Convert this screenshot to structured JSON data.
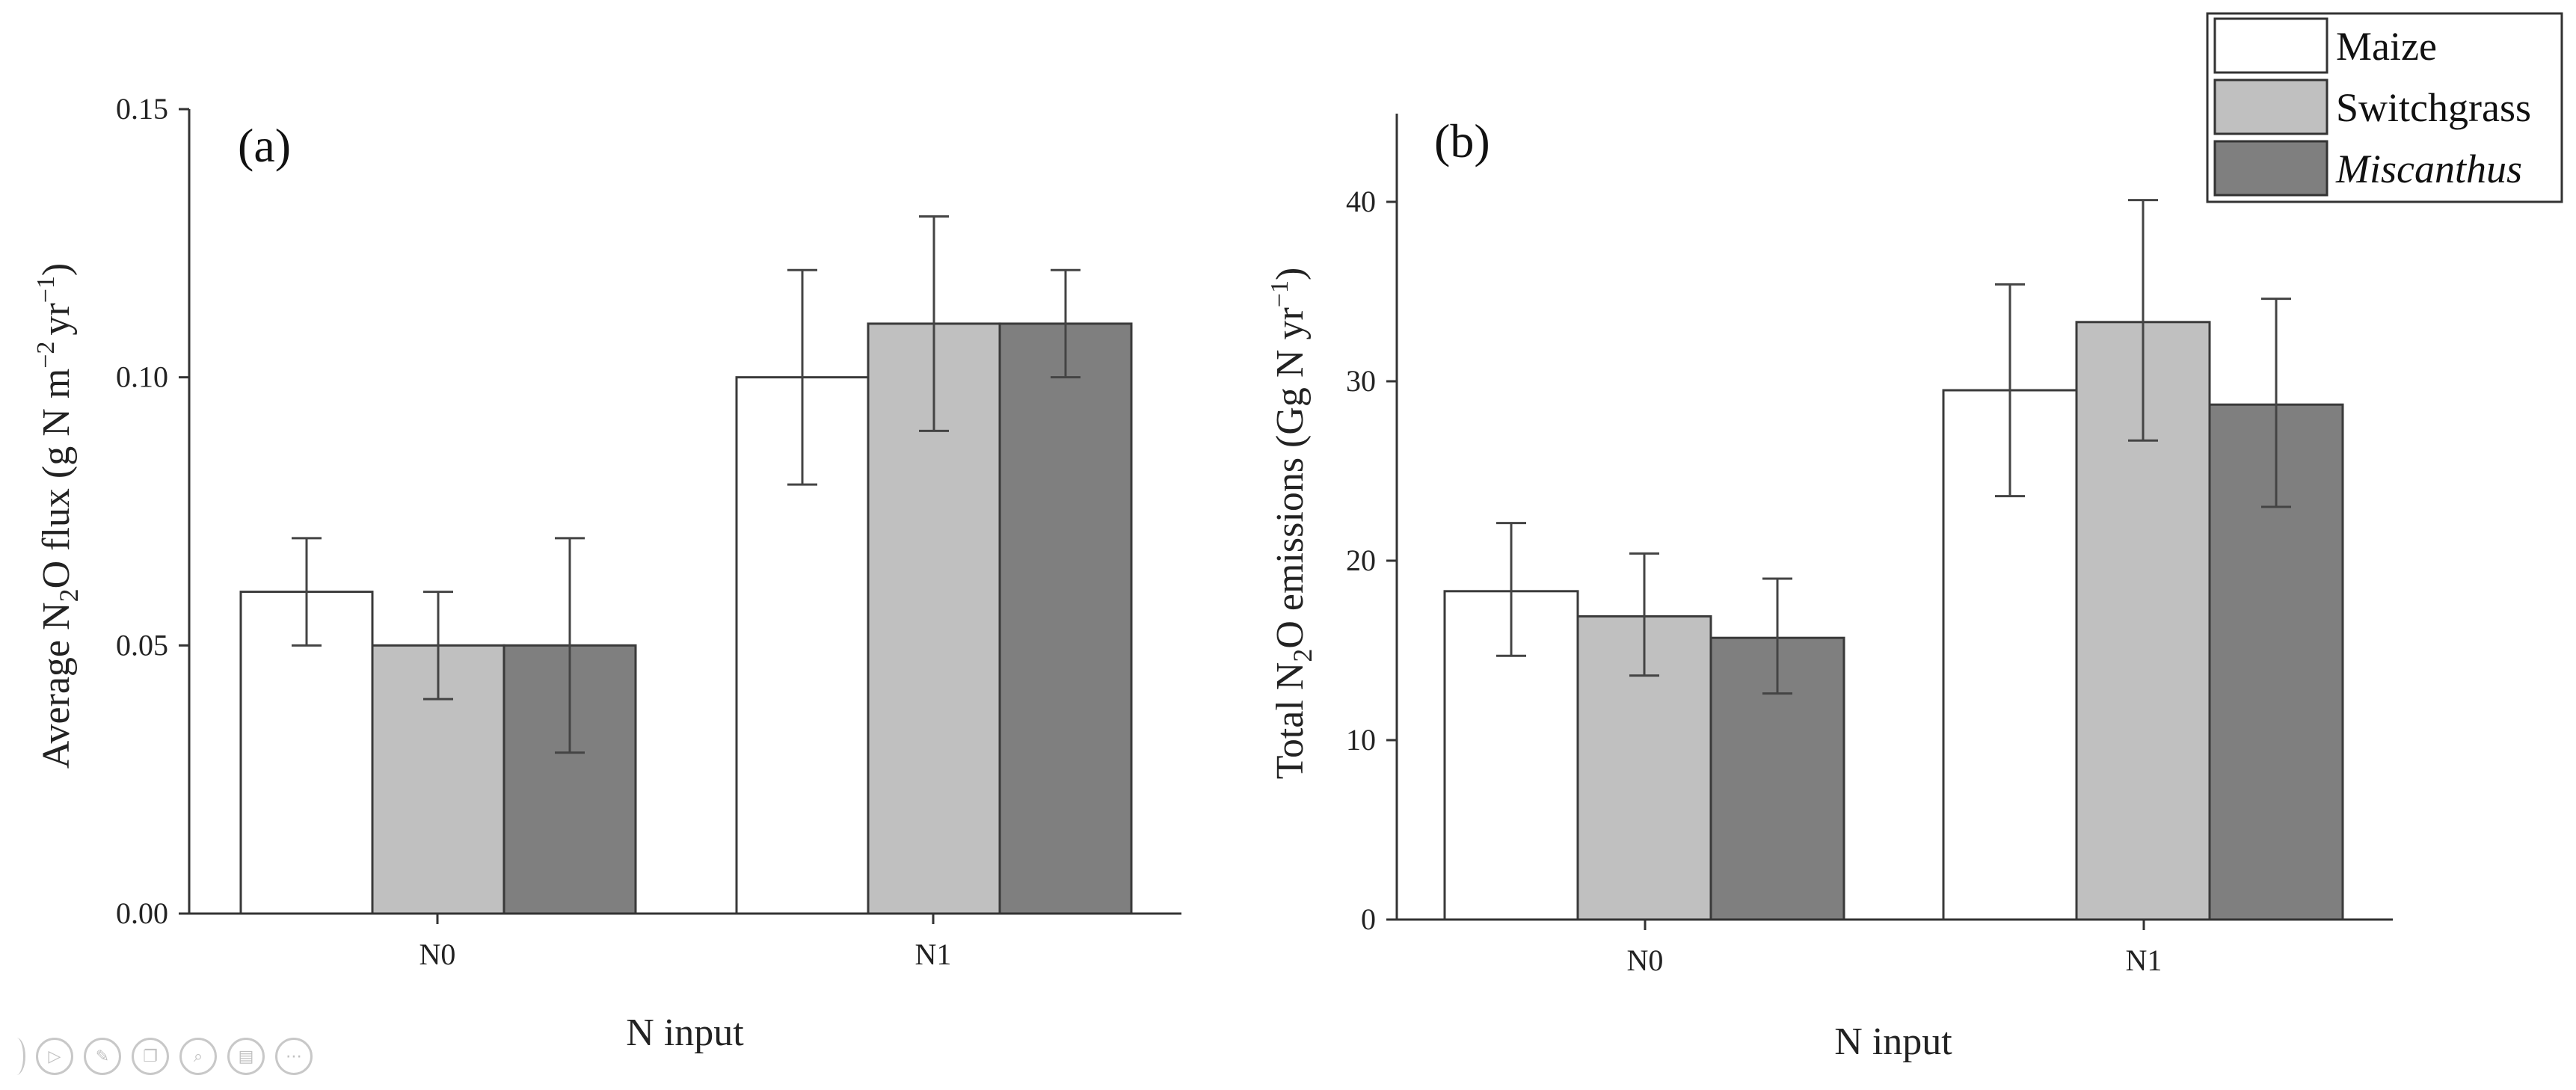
{
  "figure": {
    "legend": [
      {
        "label": "Maize",
        "color": "#ffffff",
        "italic": false
      },
      {
        "label": "Switchgrass",
        "color": "#c0c0c0",
        "italic": false
      },
      {
        "label": "Miscanthus",
        "color": "#7f7f7f",
        "italic": true
      }
    ]
  },
  "chart_data": [
    {
      "type": "bar",
      "panel_label": "(a)",
      "categories": [
        "N0",
        "N1"
      ],
      "xlabel": "N input",
      "ylabel": {
        "pre": "Average N",
        "sub": "2",
        "mid": "O flux (g N m",
        "sup1": "−2",
        "mid2": "yr",
        "sup2": "−1",
        "post": ")"
      },
      "ylim": [
        0,
        0.15
      ],
      "yticks": [
        0.0,
        0.05,
        0.1,
        0.15
      ],
      "ytick_labels": [
        "0.00",
        "0.05",
        "0.10",
        "0.15"
      ],
      "series": [
        {
          "name": "Maize",
          "values": [
            0.06,
            0.1
          ],
          "err_low": [
            0.05,
            0.08
          ],
          "err_high": [
            0.07,
            0.12
          ]
        },
        {
          "name": "Switchgrass",
          "values": [
            0.05,
            0.11
          ],
          "err_low": [
            0.04,
            0.09
          ],
          "err_high": [
            0.06,
            0.13
          ]
        },
        {
          "name": "Miscanthus",
          "values": [
            0.05,
            0.11
          ],
          "err_low": [
            0.03,
            0.1
          ],
          "err_high": [
            0.07,
            0.12
          ]
        }
      ]
    },
    {
      "type": "bar",
      "panel_label": "(b)",
      "categories": [
        "N0",
        "N1"
      ],
      "xlabel": "N input",
      "ylabel": {
        "pre": "Total N",
        "sub": "2",
        "mid": "O emissions (Gg N yr",
        "sup1": "−1",
        "mid2": "",
        "sup2": "",
        "post": ")"
      },
      "ylim": [
        0,
        45
      ],
      "yticks": [
        0,
        10,
        20,
        30,
        40
      ],
      "ytick_labels": [
        "0",
        "10",
        "20",
        "30",
        "40"
      ],
      "series": [
        {
          "name": "Maize",
          "values": [
            18.3,
            29.5
          ],
          "err_low": [
            14.7,
            23.6
          ],
          "err_high": [
            22.1,
            35.4
          ]
        },
        {
          "name": "Switchgrass",
          "values": [
            16.9,
            33.3
          ],
          "err_low": [
            13.6,
            26.7
          ],
          "err_high": [
            20.4,
            40.1
          ]
        },
        {
          "name": "Miscanthus",
          "values": [
            15.7,
            28.7
          ],
          "err_low": [
            12.6,
            23.0
          ],
          "err_high": [
            19.0,
            34.6
          ]
        }
      ]
    }
  ],
  "toolbar": {
    "icons": [
      "previous-icon",
      "play-icon",
      "pen-icon",
      "copy-icon",
      "zoom-icon",
      "slides-icon",
      "more-icon"
    ]
  }
}
